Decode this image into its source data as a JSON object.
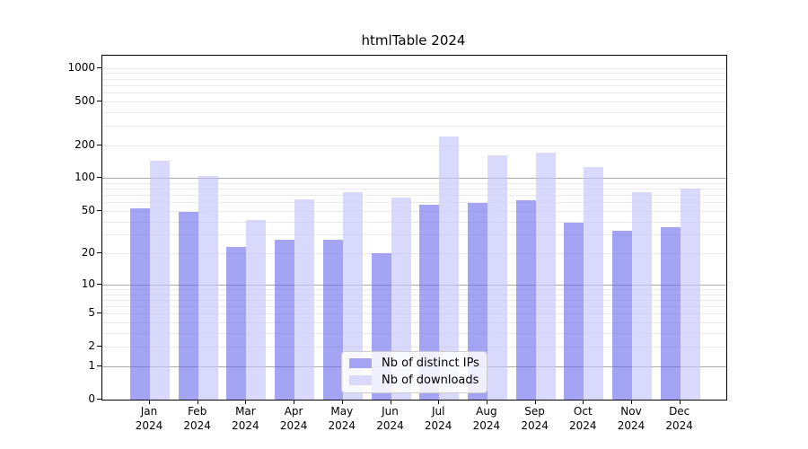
{
  "figure": {
    "background": "#ffffff",
    "axis_color": "#000000",
    "major_grid_color": "#ababab",
    "minor_grid_color": "#eaeaea"
  },
  "chart_data": {
    "type": "bar",
    "title": "htmlTable 2024",
    "categories": [
      "Jan",
      "Feb",
      "Mar",
      "Apr",
      "May",
      "Jun",
      "Jul",
      "Aug",
      "Sep",
      "Oct",
      "Nov",
      "Dec"
    ],
    "category_year": "2024",
    "series": [
      {
        "name": "Nb of distinct IPs",
        "color": "rgba(99,99,237,0.58)",
        "solid_color": "#a4a4f5",
        "values": [
          53,
          49,
          23,
          27,
          27,
          20,
          57,
          59,
          63,
          39,
          33,
          35
        ]
      },
      {
        "name": "Nb of downloads",
        "color": "rgba(197,197,252,0.65)",
        "solid_color": "#d9d9fc",
        "values": [
          145,
          104,
          41,
          64,
          75,
          66,
          240,
          162,
          169,
          125,
          75,
          80
        ]
      }
    ],
    "xlabel": "",
    "ylabel": "",
    "yscale": "log1p",
    "yticks": [
      0,
      1,
      2,
      5,
      10,
      20,
      50,
      100,
      200,
      500,
      1000
    ],
    "major_grid_ticks": [
      1,
      10,
      100
    ],
    "ylim": [
      0,
      1290
    ],
    "grid": "both",
    "legend_position": "lower-center"
  }
}
